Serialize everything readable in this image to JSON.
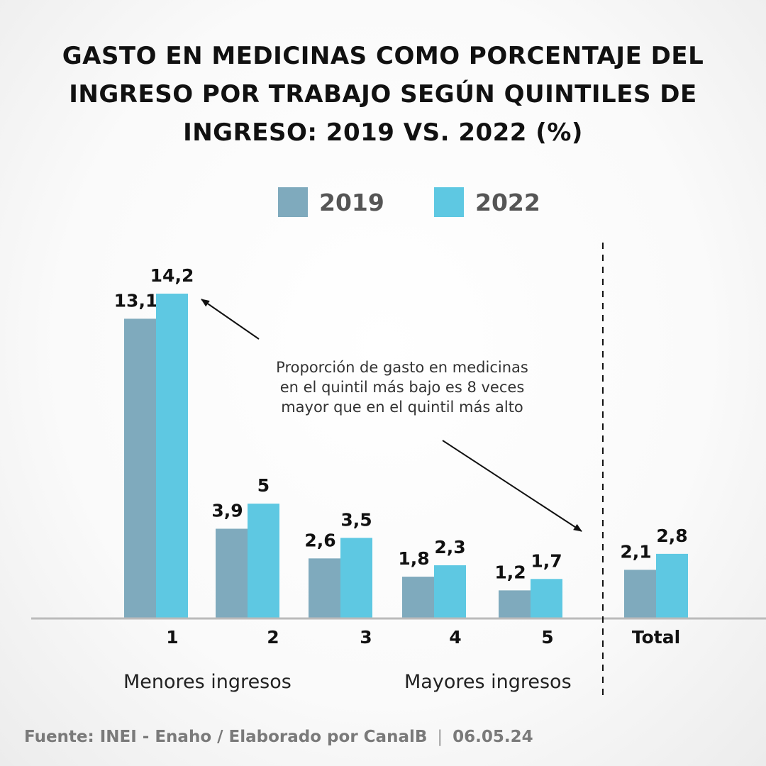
{
  "title_lines": [
    "GASTO EN MEDICINAS COMO PORCENTAJE DEL",
    "INGRESO POR TRABAJO SEGÚN QUINTILES DE",
    "INGRESO: 2019 VS. 2022 (%)"
  ],
  "colors": {
    "series_2019": "#7faabd",
    "series_2022": "#5ec8e2",
    "axis": "#bbbbbb",
    "text": "#111111"
  },
  "annotation_lines": [
    "Proporción de gasto en medicinas",
    "en el quintil más bajo es 8 veces",
    "mayor que en el quintil más alto"
  ],
  "group_labels": {
    "low": "Menores ingresos",
    "high": "Mayores ingresos"
  },
  "footer": {
    "source": "Fuente: INEI - Enaho / Elaborado por CanalB",
    "separator": "|",
    "date": "06.05.24"
  },
  "chart_data": {
    "type": "bar",
    "title": "GASTO EN MEDICINAS COMO PORCENTAJE DEL INGRESO POR TRABAJO SEGÚN QUINTILES DE INGRESO: 2019 VS. 2022 (%)",
    "categories": [
      "1",
      "2",
      "3",
      "4",
      "5",
      "Total"
    ],
    "series": [
      {
        "name": "2019",
        "values": [
          13.1,
          3.9,
          2.6,
          1.8,
          1.2,
          2.1
        ],
        "labels": [
          "13,1",
          "3,9",
          "2,6",
          "1,8",
          "1,2",
          "2,1"
        ]
      },
      {
        "name": "2022",
        "values": [
          14.2,
          5,
          3.5,
          2.3,
          1.7,
          2.8
        ],
        "labels": [
          "14,2",
          "5",
          "3,5",
          "2,3",
          "1,7",
          "2,8"
        ]
      }
    ],
    "xlabel": "",
    "ylabel": "",
    "ylim": [
      0,
      14.2
    ],
    "grid": false,
    "legend": "top-center"
  }
}
